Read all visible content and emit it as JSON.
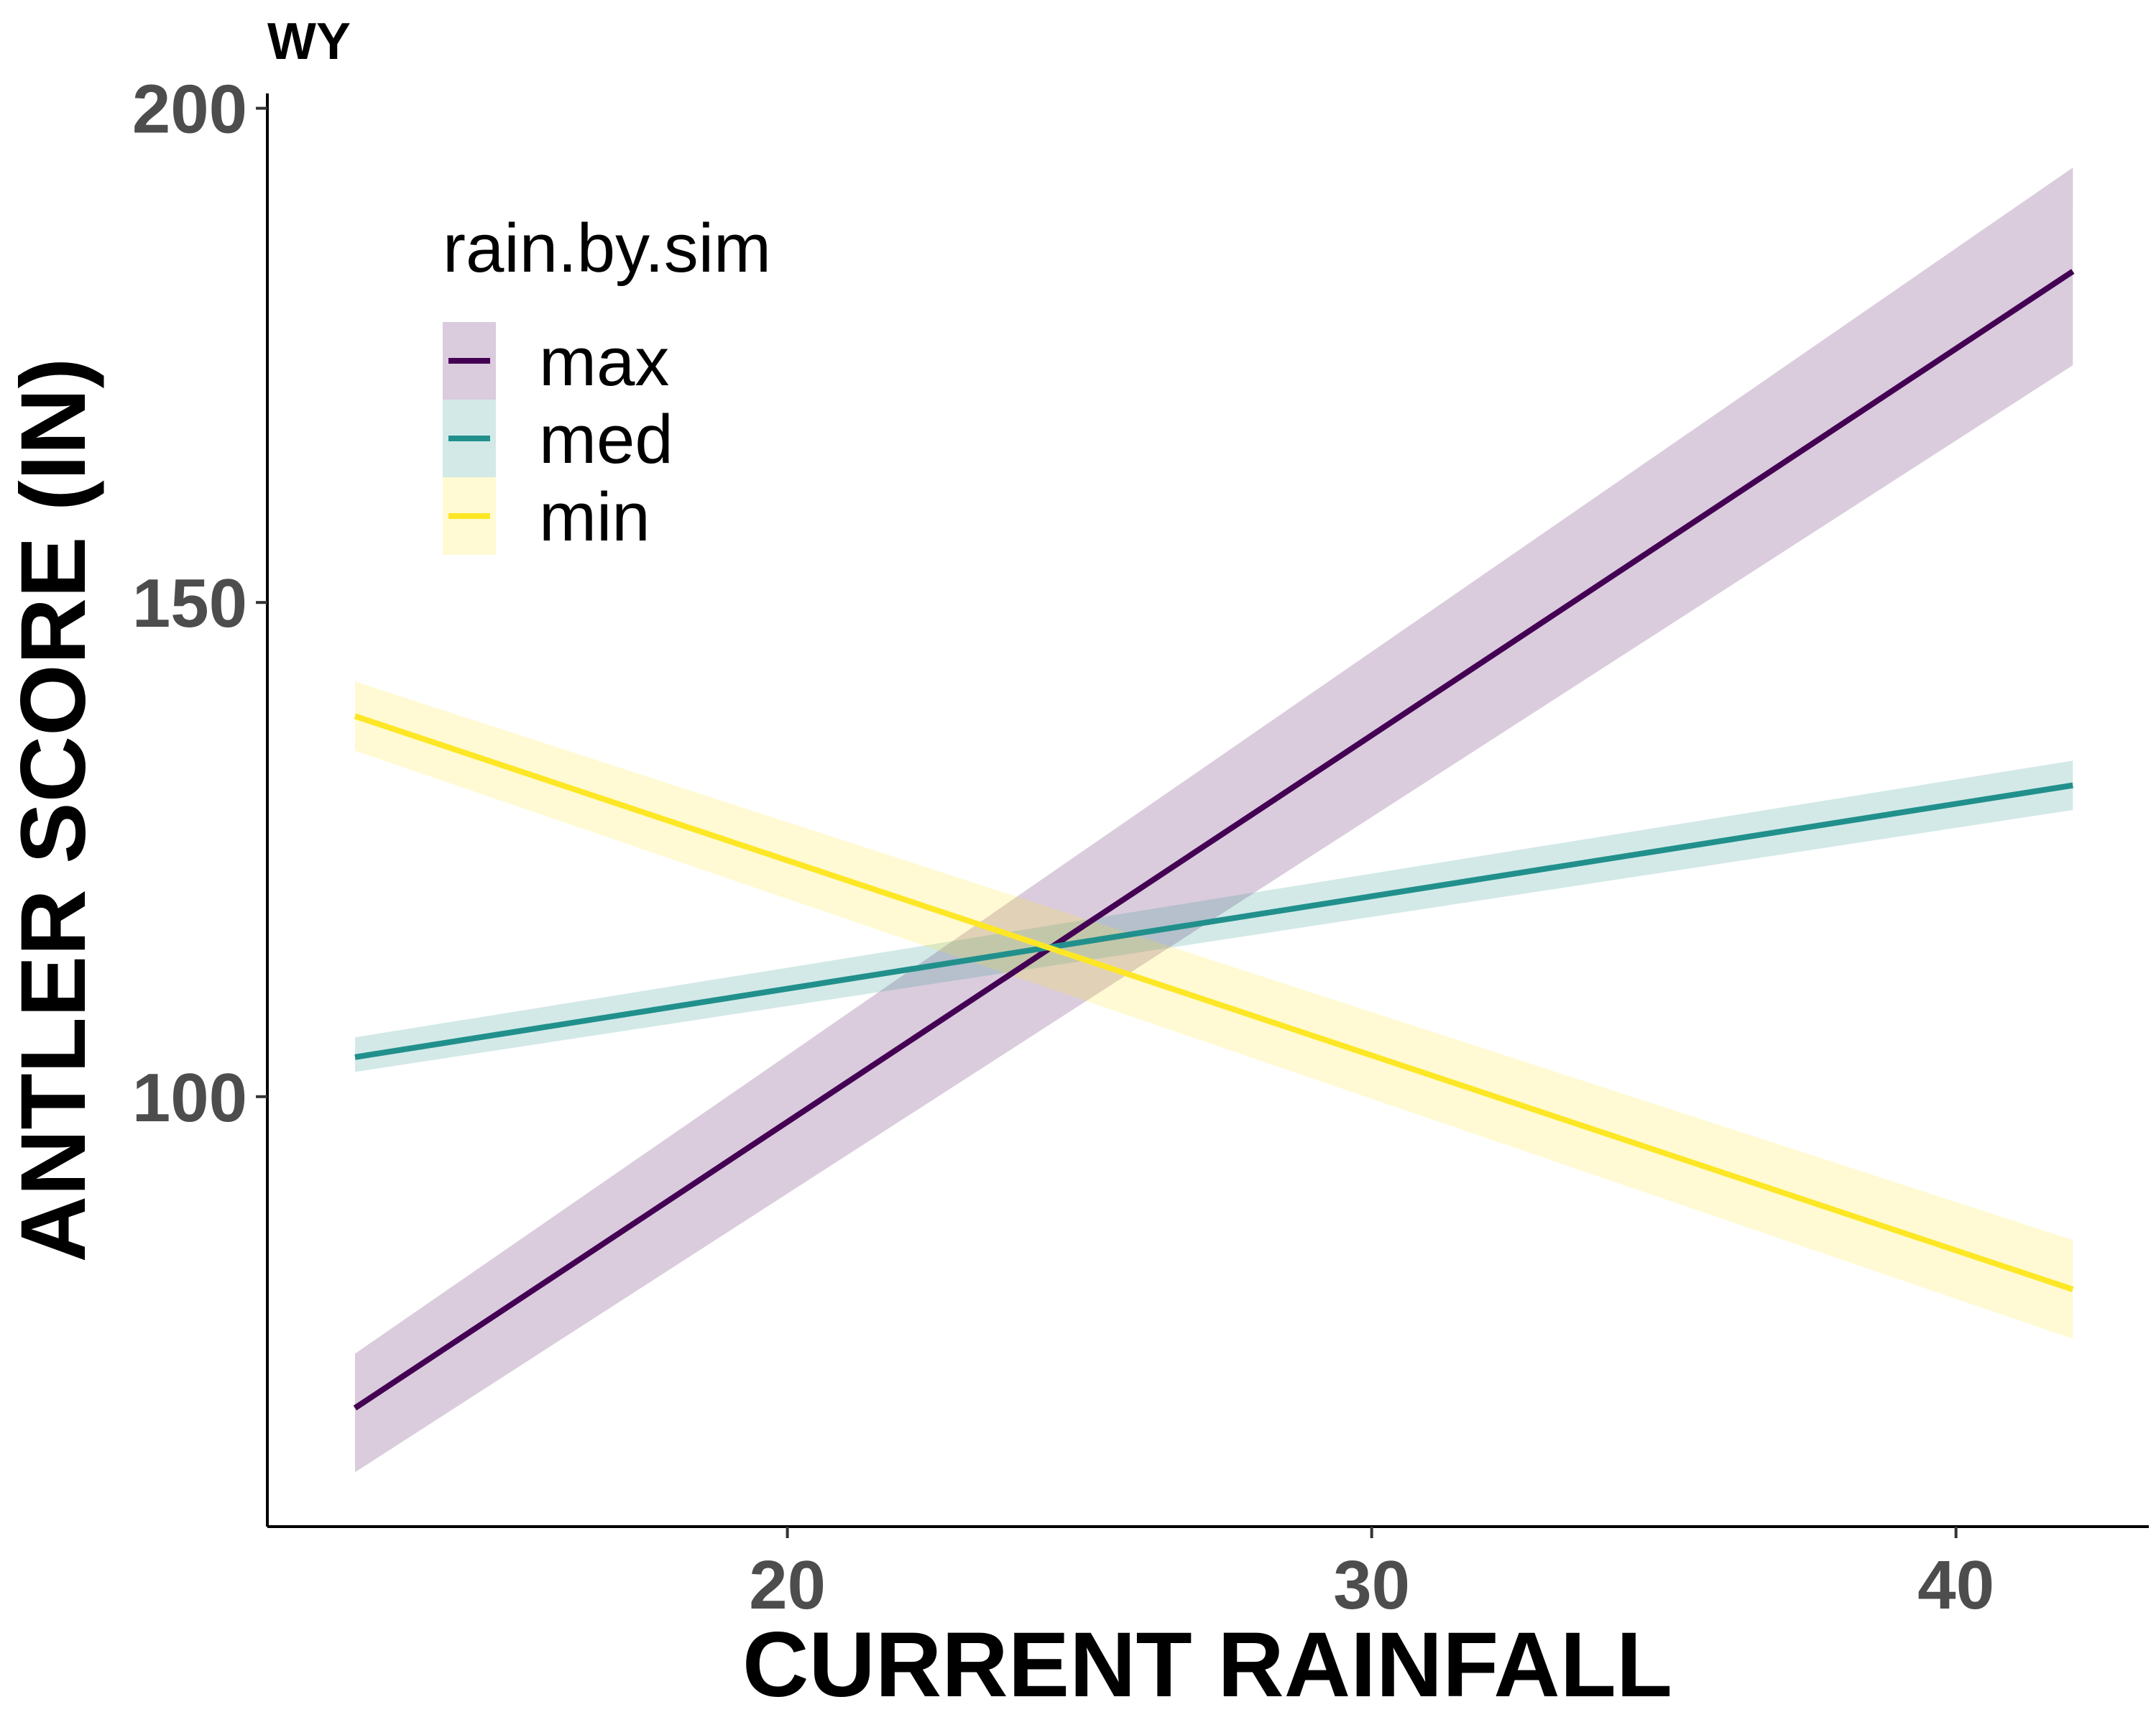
{
  "chart_data": {
    "type": "line",
    "tag": "WY",
    "title": "",
    "xlabel": "CURRENT RAINFALL",
    "ylabel": "ANTLER SCORE (IN)",
    "xlim": [
      11.1,
      43.3
    ],
    "ylim": [
      56.5,
      201.5
    ],
    "xticks": [
      20,
      30,
      40
    ],
    "yticks": [
      100,
      150,
      200
    ],
    "grid": false,
    "legend": {
      "title": "rain.by.sim",
      "position": "top-left"
    },
    "series": [
      {
        "name": "max",
        "color": "#440154",
        "x": [
          12.6,
          42
        ],
        "y": [
          68.5,
          183.5
        ],
        "lower": [
          62,
          174
        ],
        "upper": [
          74,
          194
        ]
      },
      {
        "name": "med",
        "color": "#21908C",
        "x": [
          12.6,
          42
        ],
        "y": [
          104,
          131.5
        ],
        "lower": [
          102.5,
          129
        ],
        "upper": [
          106,
          134
        ]
      },
      {
        "name": "min",
        "color": "#FDE725",
        "x": [
          12.6,
          42
        ],
        "y": [
          138.5,
          80.5
        ],
        "lower": [
          135,
          75.5
        ],
        "upper": [
          142,
          85.5
        ]
      }
    ]
  }
}
